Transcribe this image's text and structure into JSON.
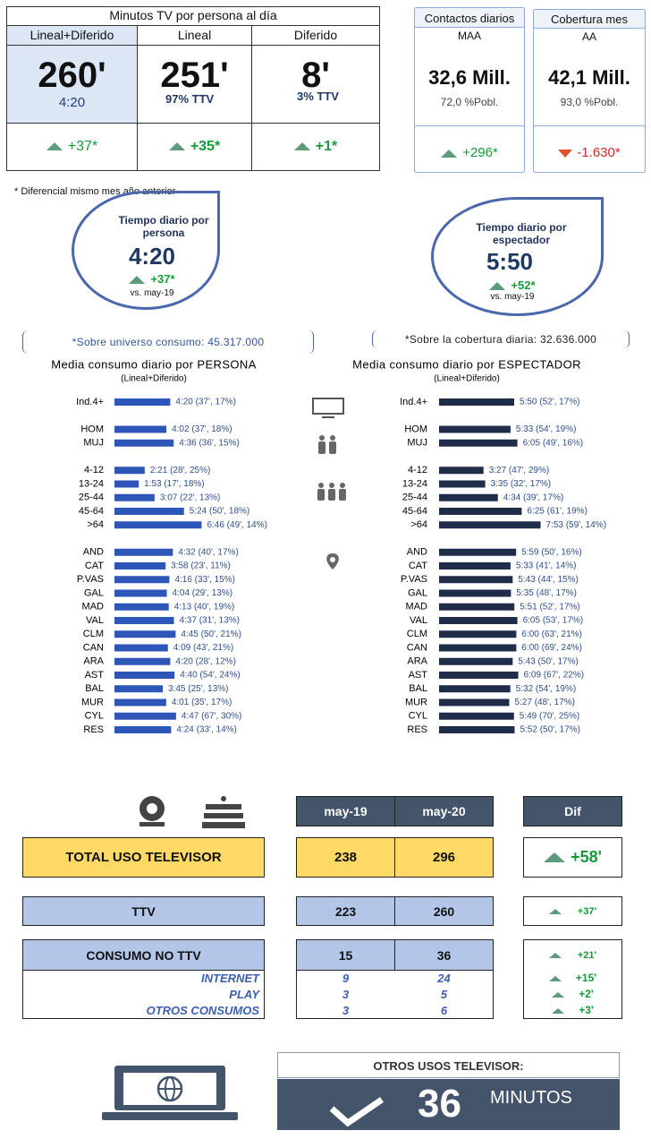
{
  "header": {
    "title": "Minutos TV por persona al día",
    "columns": [
      {
        "label": "Lineal+Diferido",
        "value": "260'",
        "sub": "4:20",
        "diff": "+37*"
      },
      {
        "label": "Lineal",
        "value": "251'",
        "sub": "97% TTV",
        "diff": "+35*"
      },
      {
        "label": "Diferido",
        "value": "8'",
        "sub": "3% TTV",
        "diff": "+1*"
      }
    ]
  },
  "kpis": [
    {
      "title": "Contactos diarios",
      "unit": "MAA",
      "value": "32,6 Mill.",
      "sub": "72,0 %Pobl.",
      "diff": "+296*"
    },
    {
      "title": "Cobertura mes",
      "unit": "AA",
      "value": "42,1 Mill.",
      "sub": "93,0 %Pobl.",
      "diff": "-1.630*"
    }
  ],
  "note": "* Diferencial  mismo mes año anterior",
  "drops": [
    {
      "title": "Tiempo diario por persona",
      "value": "4:20",
      "diff": "+37*",
      "ref": "vs. may-19",
      "universe": "*Sobre universo consumo: 45.317.000"
    },
    {
      "title": "Tiempo diario por espectador",
      "value": "5:50",
      "diff": "+52*",
      "ref": "vs. may-19",
      "universe": "*Sobre la cobertura diaria: 32.636.000"
    }
  ],
  "chart_data": [
    {
      "type": "bar",
      "title": "Media consumo diario por PERSONA",
      "subtitle": "(Lineal+Diferido)",
      "color": "#2e56b8",
      "categories": [
        "Ind.4+",
        "HOM",
        "MUJ",
        "4-12",
        "13-24",
        "25-44",
        "45-64",
        ">64",
        "AND",
        "CAT",
        "P.VAS",
        "GAL",
        "MAD",
        "VAL",
        "CLM",
        "CAN",
        "ARA",
        "AST",
        "BAL",
        "MUR",
        "CYL",
        "RES"
      ],
      "values": [
        260,
        242,
        276,
        141,
        113,
        187,
        324,
        406,
        272,
        238,
        256,
        244,
        253,
        277,
        285,
        249,
        260,
        280,
        225,
        241,
        287,
        264
      ],
      "value_labels": [
        "4:20 (37', 17%)",
        "4:02 (37', 18%)",
        "4:36 (36', 15%)",
        "2:21 (28', 25%)",
        "1:53 (17', 18%)",
        "3:07 (22', 13%)",
        "5:24 (50', 18%)",
        "6:46 (49', 14%)",
        "4:32 (40', 17%)",
        "3:58 (23', 11%)",
        "4:16 (33', 15%)",
        "4:04 (29', 13%)",
        "4:13 (40', 19%)",
        "4:37 (31', 13%)",
        "4:45 (50', 21%)",
        "4:09 (43', 21%)",
        "4:20 (28', 12%)",
        "4:40 (54', 24%)",
        "3:45 (25', 13%)",
        "4:01 (35', 17%)",
        "4:47 (67', 30%)",
        "4:24 (33', 14%)"
      ]
    },
    {
      "type": "bar",
      "title": "Media consumo diario por ESPECTADOR",
      "subtitle": "(Lineal+Diferido)",
      "color": "#1f2d4a",
      "categories": [
        "Ind.4+",
        "HOM",
        "MUJ",
        "4-12",
        "13-24",
        "25-44",
        "45-64",
        ">64",
        "AND",
        "CAT",
        "P.VAS",
        "GAL",
        "MAD",
        "VAL",
        "CLM",
        "CAN",
        "ARA",
        "AST",
        "BAL",
        "MUR",
        "CYL",
        "RES"
      ],
      "values": [
        350,
        333,
        365,
        207,
        215,
        274,
        385,
        473,
        359,
        333,
        343,
        335,
        351,
        365,
        360,
        360,
        343,
        369,
        332,
        327,
        349,
        352
      ],
      "value_labels": [
        "5:50 (52', 17%)",
        "5:33 (54', 19%)",
        "6:05 (49', 16%)",
        "3:27 (47', 29%)",
        "3:35 (32', 17%)",
        "4:34 (39', 17%)",
        "6:25 (61', 19%)",
        "7:53 (59', 14%)",
        "5:59 (50', 16%)",
        "5:33 (41', 14%)",
        "5:43 (44', 15%)",
        "5:35 (48', 17%)",
        "5:51 (52', 17%)",
        "6:05 (53', 17%)",
        "6:00 (63', 21%)",
        "6:00 (69', 24%)",
        "5:43 (50', 17%)",
        "6:09 (67', 22%)",
        "5:32 (54', 19%)",
        "5:27 (48', 17%)",
        "5:49 (70', 25%)",
        "5:52 (50', 17%)"
      ]
    }
  ],
  "usage_table": {
    "headers": [
      "may-19",
      "may-20",
      "Dif"
    ],
    "rows": [
      {
        "label": "TOTAL USO TELEVISOR",
        "values": [
          238,
          296
        ],
        "diff": "+58'"
      },
      {
        "label": "TTV",
        "values": [
          223,
          260
        ],
        "diff": "+37'"
      },
      {
        "label": "CONSUMO NO TTV",
        "values": [
          15,
          36
        ],
        "diff": "+21'"
      },
      {
        "label": "INTERNET",
        "values": [
          9,
          24
        ],
        "diff": "+15'"
      },
      {
        "label": "PLAY",
        "values": [
          3,
          5
        ],
        "diff": "+2'"
      },
      {
        "label": "OTROS CONSUMOS",
        "values": [
          3,
          6
        ],
        "diff": "+3'"
      }
    ]
  },
  "banner": {
    "title": "OTROS USOS TELEVISOR:",
    "value": "36",
    "unit": "MINUTOS"
  }
}
